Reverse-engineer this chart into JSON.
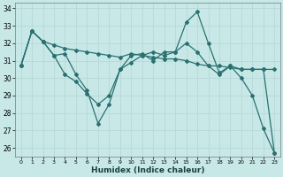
{
  "xlabel": "Humidex (Indice chaleur)",
  "background_color": "#c8e8e8",
  "grid_color": "#b8d8d8",
  "line_color": "#2a7070",
  "xlim": [
    -0.5,
    23.5
  ],
  "ylim": [
    25.5,
    34.3
  ],
  "yticks": [
    26,
    27,
    28,
    29,
    30,
    31,
    32,
    33,
    34
  ],
  "xticks": [
    0,
    1,
    2,
    3,
    4,
    5,
    6,
    7,
    8,
    9,
    10,
    11,
    12,
    13,
    14,
    15,
    16,
    17,
    18,
    19,
    20,
    21,
    22,
    23
  ],
  "series": [
    [
      30.7,
      32.7,
      32.1,
      31.3,
      30.2,
      29.8,
      29.1,
      28.5,
      29.0,
      30.5,
      31.3,
      31.4,
      31.0,
      31.5,
      31.5,
      33.2,
      33.8,
      32.0,
      30.3,
      30.7,
      30.0,
      29.0,
      27.1,
      25.7
    ],
    [
      30.7,
      32.7,
      32.1,
      31.9,
      31.7,
      31.6,
      31.5,
      31.4,
      31.3,
      31.2,
      31.4,
      31.3,
      31.2,
      31.1,
      31.1,
      31.0,
      30.8,
      30.7,
      30.7,
      30.6,
      30.5,
      30.5,
      30.5,
      30.5
    ],
    [
      30.7,
      32.7,
      32.1,
      31.3,
      31.4,
      30.2,
      29.3,
      27.4,
      28.5,
      30.5,
      30.9,
      31.3,
      31.5,
      31.3,
      31.5,
      32.0,
      31.5,
      30.7,
      30.2,
      30.7,
      30.5,
      30.5,
      30.5,
      25.7
    ]
  ]
}
